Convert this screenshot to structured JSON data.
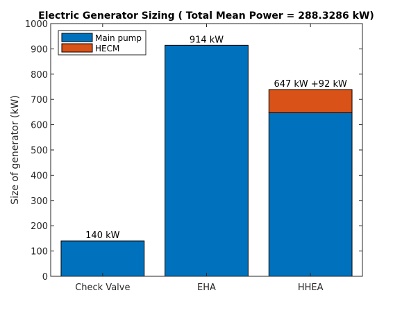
{
  "chart_data": {
    "type": "bar",
    "stacked": true,
    "title": "Electric Generator Sizing ( Total Mean Power = 288.3286 kW)",
    "xlabel": "",
    "ylabel": "Size of generator (kW)",
    "categories": [
      "Check Valve",
      "EHA",
      "HHEA"
    ],
    "series": [
      {
        "name": "Main pump",
        "color": "#0072BD",
        "values": [
          140,
          914,
          647
        ]
      },
      {
        "name": "HECM",
        "color": "#D95319",
        "values": [
          0,
          0,
          92
        ]
      }
    ],
    "data_labels": [
      "140 kW",
      "914 kW",
      "647 kW +92 kW"
    ],
    "ylim": [
      0,
      1000
    ],
    "yticks": [
      0,
      100,
      200,
      300,
      400,
      500,
      600,
      700,
      800,
      900,
      1000
    ],
    "grid": false,
    "legend_position": "top-left"
  }
}
